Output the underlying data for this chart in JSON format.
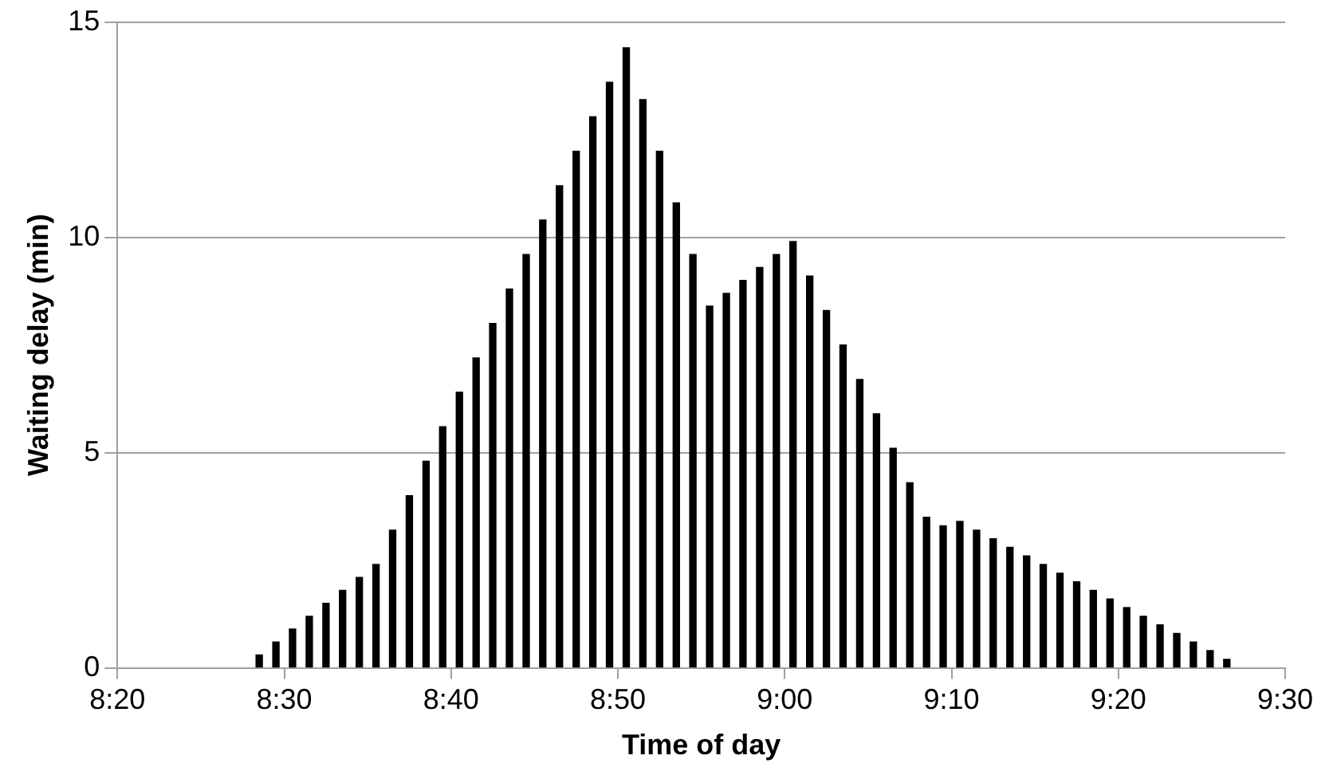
{
  "chart_data": {
    "type": "bar",
    "xlabel": "Time of day",
    "ylabel": "Waiting delay (min)",
    "x": [
      8.475,
      8.4917,
      8.5083,
      8.525,
      8.5417,
      8.5583,
      8.575,
      8.5917,
      8.6083,
      8.625,
      8.6417,
      8.6583,
      8.675,
      8.6917,
      8.7083,
      8.725,
      8.7417,
      8.7583,
      8.775,
      8.7917,
      8.8083,
      8.825,
      8.8417,
      8.8583,
      8.875,
      8.8917,
      8.9083,
      8.925,
      8.9417,
      8.9583,
      8.975,
      8.9917,
      9.0083,
      9.025,
      9.0417,
      9.0583,
      9.075,
      9.0917,
      9.1083,
      9.125,
      9.1417,
      9.1583,
      9.175,
      9.1917,
      9.2083,
      9.225,
      9.2417,
      9.2583,
      9.275,
      9.2917,
      9.3083,
      9.325,
      9.3417,
      9.3583,
      9.375,
      9.3917,
      9.4083,
      9.425,
      9.4417
    ],
    "values": [
      0.3,
      0.6,
      0.9,
      1.2,
      1.5,
      1.8,
      2.1,
      2.4,
      3.2,
      4.0,
      4.8,
      5.6,
      6.4,
      7.2,
      8.0,
      8.8,
      9.6,
      10.4,
      11.2,
      12.0,
      12.8,
      13.6,
      14.4,
      13.2,
      12.0,
      10.8,
      9.6,
      8.4,
      8.7,
      9.0,
      9.3,
      9.6,
      9.9,
      9.1,
      8.3,
      7.5,
      6.7,
      5.9,
      5.1,
      4.3,
      3.5,
      3.3,
      3.4,
      3.2,
      3.0,
      2.8,
      2.6,
      2.4,
      2.2,
      2.0,
      1.8,
      1.6,
      1.4,
      1.2,
      1.0,
      0.8,
      0.6,
      0.4,
      0.2
    ],
    "color": "#000000",
    "xlim": [
      8.3333,
      9.5
    ],
    "xticks": [
      {
        "value": 8.3333,
        "label": "8:20"
      },
      {
        "value": 8.5,
        "label": "8:30"
      },
      {
        "value": 8.6667,
        "label": "8:40"
      },
      {
        "value": 8.8333,
        "label": "8:50"
      },
      {
        "value": 9.0,
        "label": "9:00"
      },
      {
        "value": 9.1667,
        "label": "9:10"
      },
      {
        "value": 9.3333,
        "label": "9:20"
      },
      {
        "value": 9.5,
        "label": "9:30"
      }
    ],
    "ylim": [
      0,
      15
    ],
    "yticks": [
      0,
      5,
      10,
      15
    ],
    "grid": "y",
    "legend": false
  }
}
